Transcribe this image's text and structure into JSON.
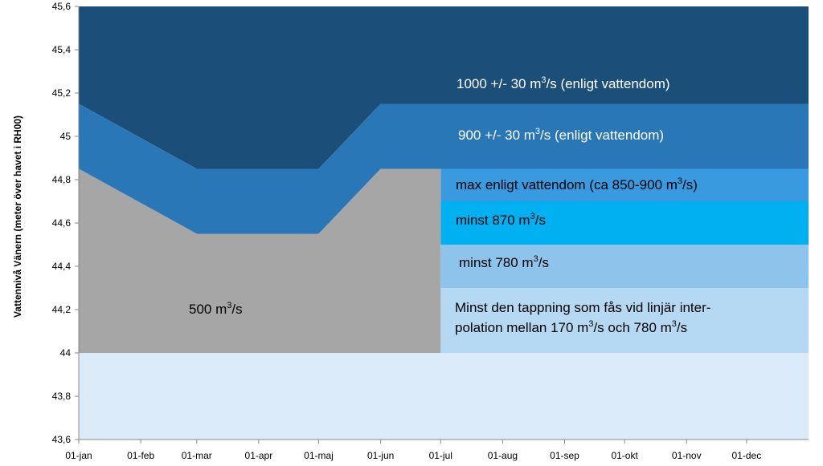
{
  "chart_data": {
    "type": "area",
    "ylabel": "Vattennivå  Vänern (meter över havet i RH00)",
    "xlabel": "",
    "ylim": [
      43.6,
      45.6
    ],
    "xlim": [
      1,
      366
    ],
    "grid": false,
    "y_ticks": [
      "43,6",
      "43,8",
      "44",
      "44,2",
      "44,4",
      "44,6",
      "44,8",
      "45",
      "45,2",
      "45,4",
      "45,6"
    ],
    "y_tick_values": [
      43.6,
      43.8,
      44.0,
      44.2,
      44.4,
      44.6,
      44.8,
      45.0,
      45.2,
      45.4,
      45.6
    ],
    "x_ticks": [
      "01-jan",
      "01-feb",
      "01-mar",
      "01-apr",
      "01-maj",
      "01-jun",
      "01-jul",
      "01-aug",
      "01-sep",
      "01-okt",
      "01-nov",
      "01-dec"
    ],
    "x_tick_days": [
      1,
      32,
      60,
      91,
      121,
      152,
      182,
      213,
      244,
      274,
      305,
      335
    ],
    "zones": [
      {
        "id": "z1000",
        "color": "#1b4f7a",
        "label_pre": "1000 +/- 30 m",
        "label_sup": "3",
        "label_post": "/s (enligt vattendom)",
        "label_color": "#ffffff",
        "polygon": [
          [
            1,
            45.6
          ],
          [
            366,
            45.6
          ],
          [
            366,
            45.15
          ],
          [
            152,
            45.15
          ],
          [
            121,
            44.85
          ],
          [
            60,
            44.85
          ],
          [
            1,
            45.15
          ]
        ]
      },
      {
        "id": "z900",
        "color": "#2a77b8",
        "label_pre": "900 +/- 30 m",
        "label_sup": "3",
        "label_post": "/s (enligt vattendom)",
        "label_color": "#ffffff",
        "polygon": [
          [
            1,
            45.15
          ],
          [
            60,
            44.85
          ],
          [
            121,
            44.85
          ],
          [
            152,
            45.15
          ],
          [
            366,
            45.15
          ],
          [
            366,
            44.85
          ],
          [
            182,
            44.85
          ],
          [
            152,
            44.85
          ],
          [
            121,
            44.55
          ],
          [
            60,
            44.55
          ],
          [
            1,
            44.85
          ]
        ]
      },
      {
        "id": "zmax",
        "color": "#3a9ae0",
        "label_pre": "max enligt vattendom (ca 850-900 m",
        "label_sup": "3",
        "label_post": "/s)",
        "label_color": "#000000",
        "polygon": [
          [
            182,
            44.85
          ],
          [
            366,
            44.85
          ],
          [
            366,
            44.7
          ],
          [
            182,
            44.7
          ]
        ]
      },
      {
        "id": "z870",
        "color": "#00b0f0",
        "label_pre": "minst 870 m",
        "label_sup": "3",
        "label_post": "/s",
        "label_color": "#000000",
        "polygon": [
          [
            182,
            44.7
          ],
          [
            366,
            44.7
          ],
          [
            366,
            44.5
          ],
          [
            182,
            44.5
          ]
        ]
      },
      {
        "id": "z780",
        "color": "#8ec4ec",
        "label_pre": "minst 780 m",
        "label_sup": "3",
        "label_post": "/s",
        "label_color": "#000000",
        "polygon": [
          [
            182,
            44.5
          ],
          [
            366,
            44.5
          ],
          [
            366,
            44.3
          ],
          [
            182,
            44.3
          ]
        ]
      },
      {
        "id": "zinterp",
        "color": "#b5d9f3",
        "label_lines": [
          "Minst den tappning som fås vid linjär inter-"
        ],
        "label_pre": "polation mellan 170 m",
        "label_sup": "3",
        "label_mid": "/s och 780 m",
        "label_sup2": "3",
        "label_post": "/s",
        "label_color": "#000000",
        "polygon": [
          [
            182,
            44.3
          ],
          [
            366,
            44.3
          ],
          [
            366,
            44.0
          ],
          [
            182,
            44.0
          ]
        ]
      },
      {
        "id": "z500",
        "color": "#a6a6a6",
        "label_pre": "500 m",
        "label_sup": "3",
        "label_post": "/s",
        "label_color": "#000000",
        "polygon": [
          [
            1,
            44.85
          ],
          [
            60,
            44.55
          ],
          [
            121,
            44.55
          ],
          [
            152,
            44.85
          ],
          [
            182,
            44.85
          ],
          [
            182,
            44.0
          ],
          [
            1,
            44.0
          ]
        ]
      },
      {
        "id": "zbottom",
        "color": "#dbeaf8",
        "polygon": [
          [
            1,
            44.0
          ],
          [
            366,
            44.0
          ],
          [
            366,
            43.6
          ],
          [
            1,
            43.6
          ]
        ]
      }
    ]
  }
}
